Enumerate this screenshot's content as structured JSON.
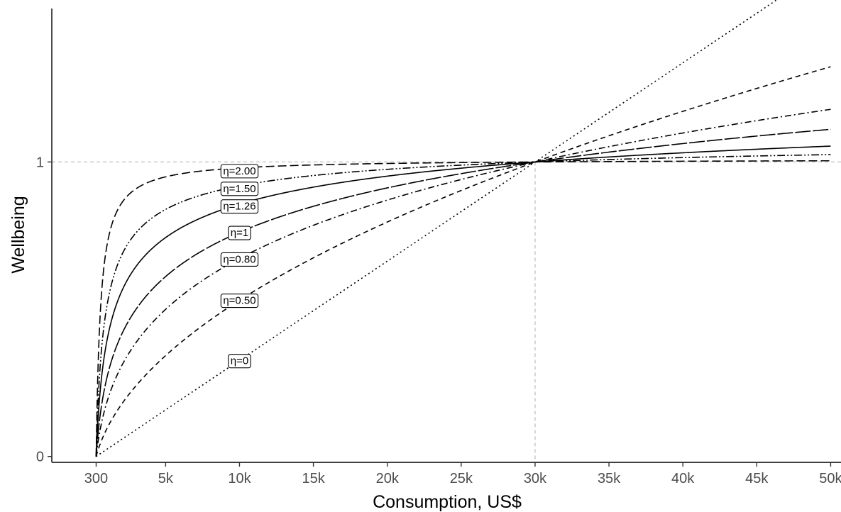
{
  "chart_data": {
    "type": "line",
    "title": "",
    "xlabel": "Consumption, US$",
    "ylabel": "Wellbeing",
    "x_domain": [
      -2700,
      50700
    ],
    "y_domain": [
      -0.02,
      1.55
    ],
    "xticks": [
      {
        "value": 300,
        "label": "300"
      },
      {
        "value": 5000,
        "label": "5k"
      },
      {
        "value": 10000,
        "label": "10k"
      },
      {
        "value": 15000,
        "label": "15k"
      },
      {
        "value": 20000,
        "label": "20k"
      },
      {
        "value": 25000,
        "label": "25k"
      },
      {
        "value": 30000,
        "label": "30k"
      },
      {
        "value": 35000,
        "label": "35k"
      },
      {
        "value": 40000,
        "label": "40k"
      },
      {
        "value": 45000,
        "label": "45k"
      },
      {
        "value": 50000,
        "label": "50k"
      }
    ],
    "yticks": [
      {
        "value": 0,
        "label": "0"
      },
      {
        "value": 1,
        "label": "1"
      }
    ],
    "reference_lines": {
      "x": 30000,
      "y": 1,
      "color": "#bfbfbf",
      "style": "dashed"
    },
    "grid": false,
    "legend": "none",
    "x_min": 300,
    "x_ref": 30000,
    "x_max": 50000,
    "series": [
      {
        "eta": 0,
        "label": "η=0",
        "dash": "2,4",
        "label_x": 10000,
        "label_y": 0.325
      },
      {
        "eta": 0.5,
        "label": "η=0.50",
        "dash": "7,5",
        "label_x": 10000,
        "label_y": 0.53
      },
      {
        "eta": 0.8,
        "label": "η=0.80",
        "dash": "9,4,2,4",
        "label_x": 10000,
        "label_y": 0.67
      },
      {
        "eta": 1,
        "label": "η=1",
        "dash": "22,3",
        "label_x": 10000,
        "label_y": 0.76
      },
      {
        "eta": 1.26,
        "label": "η=1.26",
        "dash": "",
        "label_x": 10000,
        "label_y": 0.85
      },
      {
        "eta": 1.5,
        "label": "η=1.50",
        "dash": "11,3,2,3,2,3",
        "label_x": 10000,
        "label_y": 0.91
      },
      {
        "eta": 2,
        "label": "η=2.00",
        "dash": "12,5",
        "label_x": 10000,
        "label_y": 0.97
      }
    ]
  }
}
